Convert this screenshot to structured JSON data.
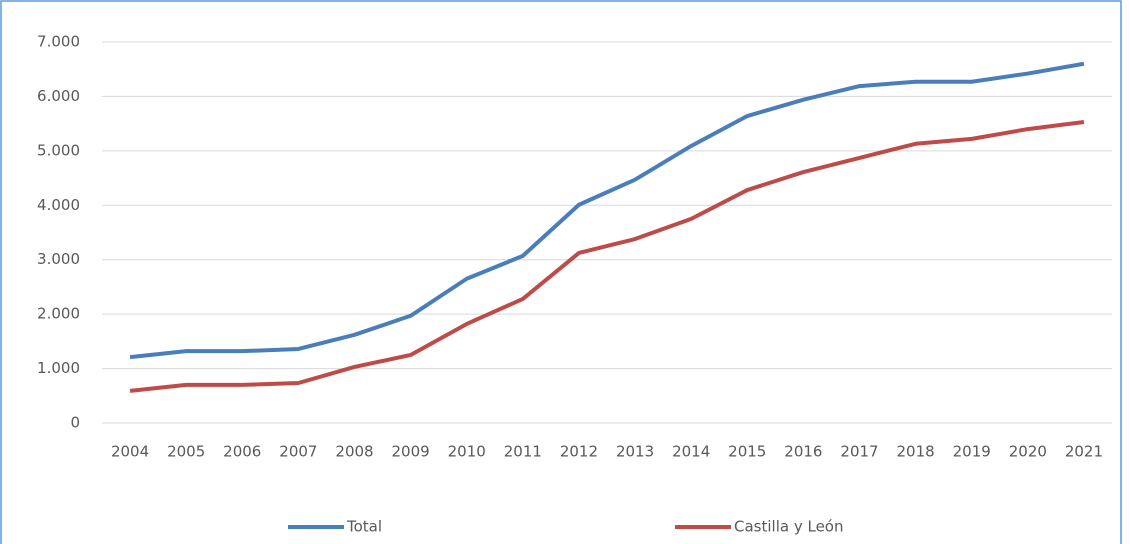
{
  "chart_data": {
    "type": "line",
    "categories": [
      "2004",
      "2005",
      "2006",
      "2007",
      "2008",
      "2009",
      "2010",
      "2011",
      "2012",
      "2013",
      "2014",
      "2015",
      "2016",
      "2017",
      "2018",
      "2019",
      "2020",
      "2021"
    ],
    "series": [
      {
        "name": "Total",
        "color": "#4a7ebb",
        "values": [
          1210,
          1320,
          1320,
          1360,
          1620,
          1970,
          2650,
          3070,
          4010,
          4470,
          5090,
          5640,
          5940,
          6190,
          6270,
          6270,
          6420,
          6600
        ]
      },
      {
        "name": "Castilla y León",
        "color": "#be4b48",
        "values": [
          590,
          700,
          700,
          735,
          1030,
          1250,
          1820,
          2280,
          3125,
          3380,
          3750,
          4280,
          4610,
          4870,
          5130,
          5220,
          5400,
          5530
        ]
      }
    ],
    "ylim": [
      0,
      7000
    ],
    "yticks": [
      0,
      {
        "value": 1000,
        "label": "1.000"
      },
      {
        "value": 2000,
        "label": "2.000"
      },
      {
        "value": 3000,
        "label": "3.000"
      },
      {
        "value": 4000,
        "label": "4.000"
      },
      {
        "value": 5000,
        "label": "5.000"
      },
      {
        "value": 6000,
        "label": "6.000"
      },
      {
        "value": 7000,
        "label": "7.000"
      }
    ],
    "grid": true,
    "legend": "bottom"
  }
}
